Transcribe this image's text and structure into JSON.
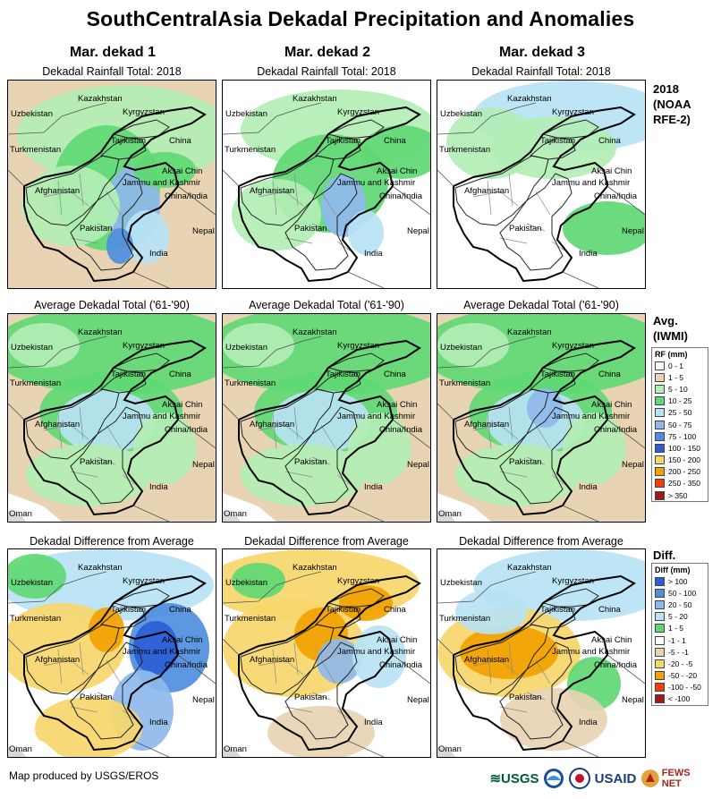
{
  "title": "SouthCentralAsia Dekadal Precipitation and Anomalies",
  "columns": [
    "Mar. dekad 1",
    "Mar. dekad 2",
    "Mar. dekad 3"
  ],
  "row_titles": {
    "rainfall": "Dekadal Rainfall Total: 2018",
    "average": "Average Dekadal Total ('61-'90)",
    "difference": "Dekadal Difference from Average"
  },
  "row_labels": {
    "rainfall": [
      "2018",
      "(NOAA",
      "RFE-2)"
    ],
    "average": [
      "Avg.",
      "(IWMI)"
    ],
    "difference": [
      "Diff."
    ]
  },
  "map_labels": {
    "kazakhstan": "Kazakhstan",
    "uzbekistan": "Uzbekistan",
    "kyrgyzstan": "Kyrgyzstan",
    "tajikistan": "Tajikistan",
    "china": "China",
    "turkmenistan": "Turkmenistan",
    "aksai_chin": "Aksai Chin",
    "jammu_kashmir": "Jammu and Kashmir",
    "china_india": "China/India",
    "afghanistan": "Afghanistan",
    "pakistan": "Pakistan",
    "nepal": "Nepal",
    "india": "India",
    "oman": "Oman"
  },
  "rf_legend": {
    "title": "RF (mm)",
    "items": [
      {
        "label": "0 - 1",
        "color": "#ffffff"
      },
      {
        "label": "1 - 5",
        "color": "#e8d3b3"
      },
      {
        "label": "5 - 10",
        "color": "#b2eeb5"
      },
      {
        "label": "10 - 25",
        "color": "#5fd874"
      },
      {
        "label": "25 - 50",
        "color": "#b7e3f4"
      },
      {
        "label": "50 - 75",
        "color": "#8fb8ec"
      },
      {
        "label": "75 - 100",
        "color": "#4f8ede"
      },
      {
        "label": "100 - 150",
        "color": "#2d5ed6"
      },
      {
        "label": "150 - 200",
        "color": "#f6d76b"
      },
      {
        "label": "200 - 250",
        "color": "#f2a200"
      },
      {
        "label": "250 - 350",
        "color": "#f23c0a"
      },
      {
        "label": "> 350",
        "color": "#9e1a1a"
      }
    ]
  },
  "diff_legend": {
    "title": "Diff (mm)",
    "items": [
      {
        "label": "> 100",
        "color": "#2d5ed6"
      },
      {
        "label": "50 - 100",
        "color": "#4f8ede"
      },
      {
        "label": "20 - 50",
        "color": "#8fb8ec"
      },
      {
        "label": "5 - 20",
        "color": "#b7e3f4"
      },
      {
        "label": "1 - 5",
        "color": "#5fd874"
      },
      {
        "label": "-1 - 1",
        "color": "#ffffff"
      },
      {
        "label": "-5 - -1",
        "color": "#e8d3b3"
      },
      {
        "label": "-20 - -5",
        "color": "#f6d76b"
      },
      {
        "label": "-50 - -20",
        "color": "#f2a200"
      },
      {
        "label": "-100 - -50",
        "color": "#f23c0a"
      },
      {
        "label": "< -100",
        "color": "#9e1a1a"
      }
    ]
  },
  "credit": "Map produced by USGS/EROS",
  "logos": {
    "usgs": "USGS",
    "usaid": "USAID",
    "fewsnet": "FEWS NET"
  }
}
